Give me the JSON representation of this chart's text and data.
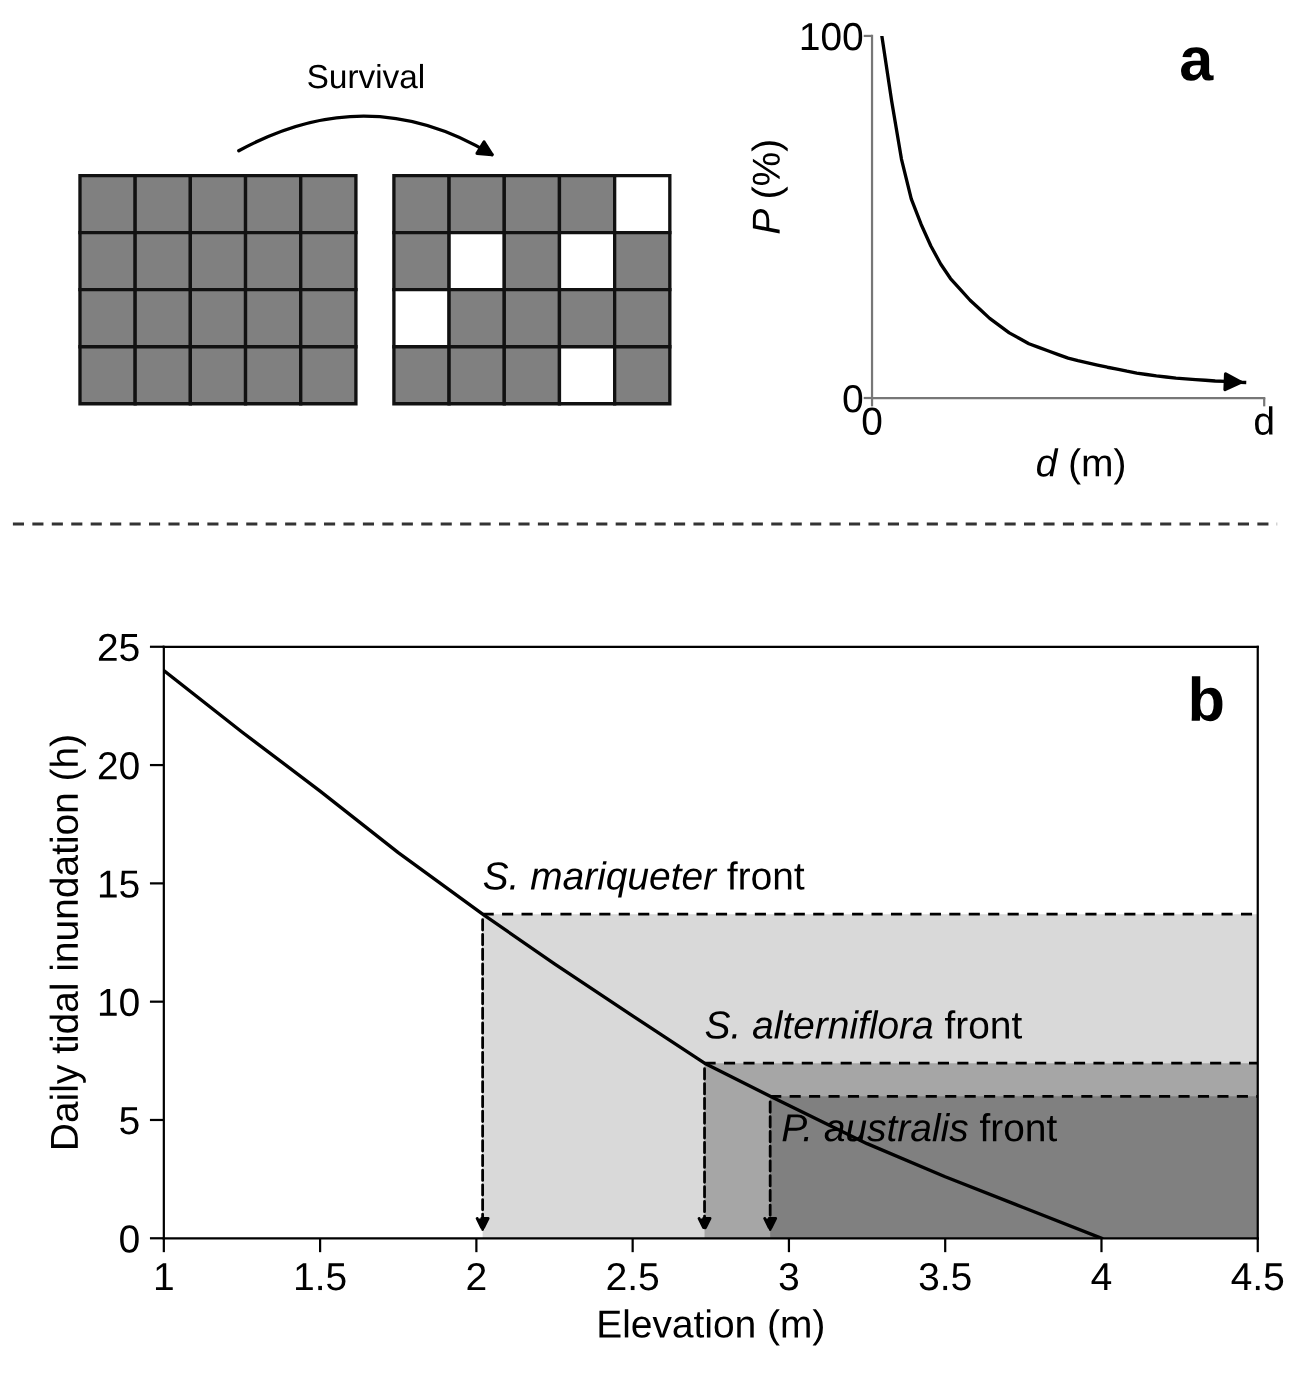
{
  "chart_data": [
    {
      "type": "other",
      "annotations": [
        "Survival"
      ]
    },
    {
      "type": "line",
      "title": "a",
      "xlabel": "d (m)",
      "ylabel": "P (%)",
      "color": "#000000",
      "categories": [
        "0",
        null,
        null,
        null,
        null,
        null,
        null,
        null,
        null,
        null,
        null,
        null,
        null,
        null,
        null,
        null,
        null,
        null,
        null,
        null,
        null,
        null,
        null,
        null,
        null,
        null,
        null,
        null,
        null,
        null,
        null,
        null,
        null,
        null,
        null,
        null,
        null,
        null,
        null,
        null,
        "d"
      ],
      "values": [
        null,
        100,
        82,
        66,
        55,
        48,
        42,
        37,
        33,
        30,
        27,
        24.5,
        22,
        20,
        18,
        16.5,
        15,
        14,
        13,
        12,
        11,
        10.3,
        9.7,
        9.1,
        8.5,
        8,
        7.4,
        6.9,
        6.5,
        6.1,
        5.8,
        5.5,
        5.3,
        5.1,
        4.9,
        4.7,
        4.6,
        4.4,
        4.3,
        null,
        null
      ],
      "ylim": [
        0,
        100
      ],
      "yticks": [
        0,
        100
      ]
    },
    {
      "type": "line",
      "title": "b",
      "xlabel": "Elevation (m)",
      "ylabel": "Daily tidal inundation (h)",
      "series": [
        {
          "type": "area",
          "color": "#d9d9d9",
          "line_style": "dashed",
          "x": [
            2.02,
            4.5
          ],
          "values": [
            13.7,
            13.7
          ]
        },
        {
          "type": "area",
          "color": "#a6a6a6",
          "line_style": "dashed",
          "x": [
            2.73,
            4.5
          ],
          "values": [
            7.4,
            7.4
          ]
        },
        {
          "type": "area",
          "color": "#808080",
          "line_style": "dashed",
          "x": [
            2.94,
            4.5
          ],
          "values": [
            6.0,
            6.0
          ]
        },
        {
          "type": "line",
          "color": "#000000",
          "x": [
            1,
            1.25,
            1.5,
            1.75,
            2.02,
            2.25,
            2.5,
            2.73,
            2.94,
            3.25,
            3.5,
            3.75,
            4
          ],
          "values": [
            24,
            21.4,
            18.9,
            16.3,
            13.7,
            11.6,
            9.4,
            7.4,
            6.0,
            4.0,
            2.6,
            1.3,
            0
          ]
        }
      ],
      "annotations": [
        {
          "text": "S. mariqueter front",
          "x": 2.02,
          "y": 13.7
        },
        {
          "text": "S. alterniflora front",
          "x": 2.73,
          "y": 7.4
        },
        {
          "text": "P. australis front",
          "x": 2.94,
          "y": 6.0
        }
      ],
      "xlim": [
        1,
        4.5
      ],
      "xticks": [
        1,
        1.5,
        2,
        2.5,
        3,
        3.5,
        4,
        4.5
      ],
      "ylim": [
        0,
        25
      ],
      "yticks": [
        0,
        5,
        10,
        15,
        20,
        25
      ]
    }
  ]
}
